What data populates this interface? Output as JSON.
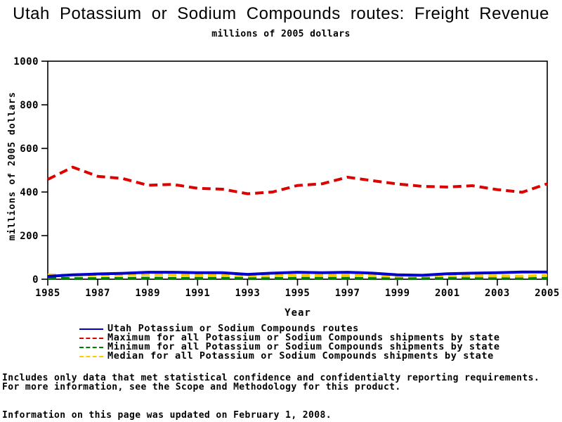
{
  "title": "Utah Potassium or Sodium Compounds routes: Freight Revenue",
  "subtitle": "millions of 2005 dollars",
  "chart_data": {
    "type": "line",
    "title": "Utah Potassium or Sodium Compounds routes: Freight Revenue",
    "subtitle": "millions of 2005 dollars",
    "xlabel": "Year",
    "ylabel": "millions of 2005 dollars",
    "ylim": [
      0,
      1000
    ],
    "y_ticks": [
      0,
      200,
      400,
      600,
      800,
      1000
    ],
    "x_ticks": [
      1985,
      1987,
      1989,
      1991,
      1993,
      1995,
      1997,
      1999,
      2001,
      2003,
      2005
    ],
    "grid": "off",
    "legend_position": "bottom",
    "x": [
      1985,
      1986,
      1987,
      1988,
      1989,
      1990,
      1991,
      1992,
      1993,
      1994,
      1995,
      1996,
      1997,
      1998,
      1999,
      2000,
      2001,
      2002,
      2003,
      2004,
      2005
    ],
    "series": [
      {
        "id": "utah-routes",
        "name": "Utah Potassium or Sodium Compounds routes",
        "color": "#0000CC",
        "line_style": "solid",
        "values": [
          13,
          20,
          24,
          27,
          32,
          32,
          30,
          30,
          22,
          28,
          32,
          30,
          32,
          28,
          20,
          18,
          25,
          28,
          30,
          33,
          33
        ]
      },
      {
        "id": "maximum",
        "name": "Maximum for all Potassium or Sodium Compounds shipments by state",
        "color": "#DD0000",
        "line_style": "dashed",
        "values": [
          458,
          514,
          472,
          462,
          431,
          435,
          417,
          413,
          392,
          400,
          430,
          438,
          468,
          452,
          437,
          426,
          423,
          429,
          411,
          399,
          438
        ]
      },
      {
        "id": "minimum",
        "name": "Minimum for all Potassium or Sodium Compounds shipments by state",
        "color": "#008000",
        "line_style": "dashed",
        "values": [
          4,
          3,
          3,
          4,
          5,
          4,
          4,
          4,
          3,
          3,
          4,
          4,
          4,
          3,
          3,
          3,
          4,
          4,
          4,
          3,
          4
        ]
      },
      {
        "id": "median",
        "name": "Median for all Potassium or Sodium Compounds shipments by state",
        "color": "#FFCC00",
        "line_style": "dashed",
        "values": [
          20,
          18,
          18,
          20,
          22,
          20,
          18,
          18,
          15,
          16,
          18,
          17,
          18,
          16,
          14,
          15,
          16,
          15,
          15,
          14,
          18
        ]
      }
    ]
  },
  "footer": {
    "line1": "Includes only data that met statistical confidence and confidentialty reporting requirements.",
    "line2": "For more information, see the Scope and Methodology for this product.",
    "line3": "Information on this page was updated on February 1, 2008."
  }
}
